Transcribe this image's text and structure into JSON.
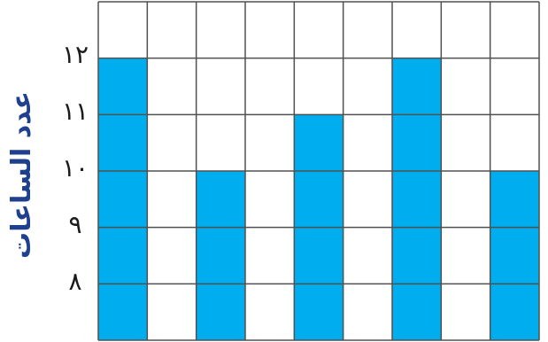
{
  "chart_data": {
    "type": "bar",
    "title": "",
    "xlabel": "",
    "ylabel": "عدد الساعات",
    "y_tick_labels": [
      "٨",
      "٩",
      "١٠",
      "١١",
      "١٢"
    ],
    "y_ticks": [
      8,
      9,
      10,
      11,
      12
    ],
    "ylim": [
      7,
      13
    ],
    "categories": [
      "",
      "",
      "",
      "",
      "",
      "",
      "",
      "",
      ""
    ],
    "values": [
      12,
      7,
      10,
      7,
      11,
      7,
      12,
      7,
      10
    ],
    "bar_color": "#00aeef",
    "grid": true,
    "grid_color": "#505050"
  }
}
